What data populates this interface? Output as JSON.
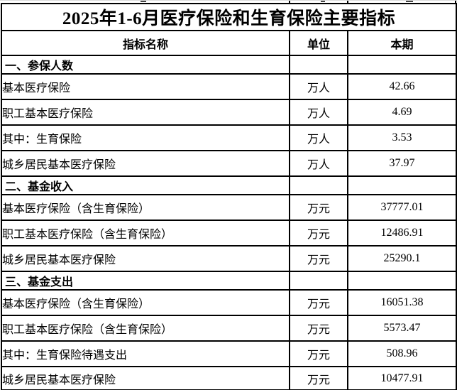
{
  "title": "2025年1-6月医疗保险和生育保险主要指标",
  "table": {
    "columns": [
      "指标名称",
      "单位",
      "本期"
    ],
    "rows": [
      {
        "type": "section",
        "name": "一、参保人数",
        "unit": "",
        "value": ""
      },
      {
        "type": "data",
        "name": "基本医疗保险",
        "unit": "万人",
        "value": "42.66"
      },
      {
        "type": "data",
        "name": "职工基本医疗保险",
        "unit": "万人",
        "value": "4.69"
      },
      {
        "type": "data",
        "name": "其中：生育保险",
        "unit": "万人",
        "value": "3.53"
      },
      {
        "type": "data",
        "name": "城乡居民基本医疗保险",
        "unit": "万人",
        "value": "37.97"
      },
      {
        "type": "section",
        "name": "二、基金收入",
        "unit": "",
        "value": ""
      },
      {
        "type": "data",
        "name": "基本医疗保险（含生育保险）",
        "unit": "万元",
        "value": "37777.01"
      },
      {
        "type": "data",
        "name": "职工基本医疗保险（含生育保险）",
        "unit": "万元",
        "value": "12486.91"
      },
      {
        "type": "data",
        "name": "城乡居民基本医疗保险",
        "unit": "万元",
        "value": "25290.1"
      },
      {
        "type": "section",
        "name": "三、基金支出",
        "unit": "",
        "value": ""
      },
      {
        "type": "data",
        "name": "基本医疗保险（含生育保险）",
        "unit": "万元",
        "value": "16051.38"
      },
      {
        "type": "data",
        "name": "职工基本医疗保险（含生育保险）",
        "unit": "万元",
        "value": "5573.47"
      },
      {
        "type": "data",
        "name": "其中：生育保险待遇支出",
        "unit": "万元",
        "value": "508.96"
      },
      {
        "type": "data",
        "name": "城乡居民基本医疗保险",
        "unit": "万元",
        "value": "10477.91"
      }
    ]
  }
}
